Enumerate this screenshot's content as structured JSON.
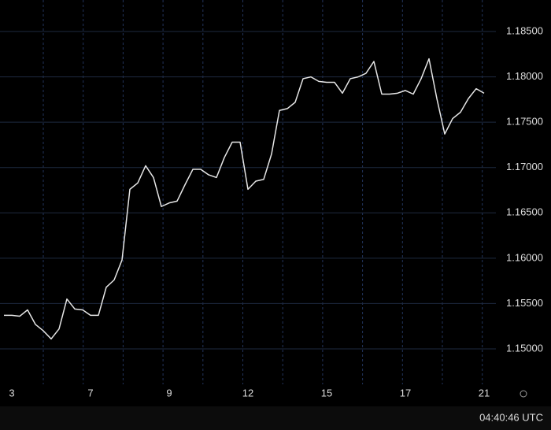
{
  "chart_data": {
    "type": "line",
    "categories": [
      null,
      "3",
      null,
      null,
      null,
      null,
      null,
      null,
      null,
      null,
      null,
      "7",
      null,
      null,
      null,
      null,
      null,
      null,
      null,
      null,
      null,
      "9",
      null,
      null,
      null,
      null,
      null,
      null,
      null,
      null,
      null,
      "12",
      null,
      null,
      null,
      null,
      null,
      null,
      null,
      null,
      null,
      "15",
      null,
      null,
      null,
      null,
      null,
      null,
      null,
      null,
      null,
      "17",
      null,
      null,
      null,
      null,
      null,
      null,
      null,
      null,
      null,
      "21"
    ],
    "series": [
      {
        "color": "#e6e6e6",
        "values": [
          1.1537,
          1.1537,
          1.1536,
          1.1543,
          1.1527,
          1.152,
          1.1511,
          1.1522,
          1.1555,
          1.1544,
          1.1543,
          1.1537,
          1.1537,
          1.1568,
          1.1576,
          1.1598,
          1.1676,
          1.1683,
          1.1702,
          1.1689,
          1.1657,
          1.1661,
          1.1663,
          1.1681,
          1.1698,
          1.1698,
          1.1692,
          1.1689,
          1.1711,
          1.1728,
          1.1728,
          1.1676,
          1.1685,
          1.1687,
          1.1715,
          1.1763,
          1.1765,
          1.1772,
          1.1798,
          1.18,
          1.1795,
          1.1794,
          1.1794,
          1.1782,
          1.1798,
          1.18,
          1.1804,
          1.1817,
          1.1781,
          1.1781,
          1.1782,
          1.1785,
          1.1781,
          1.1798,
          1.182,
          1.1776,
          1.1737,
          1.1754,
          1.1761,
          1.1776,
          1.1787,
          1.1782
        ]
      }
    ],
    "ylim": [
      1.14609,
      1.18848
    ],
    "yticks": [
      {
        "value": 1.15,
        "label": "1.15000"
      },
      {
        "value": 1.155,
        "label": "1.15500"
      },
      {
        "value": 1.16,
        "label": "1.16000"
      },
      {
        "value": 1.165,
        "label": "1.16500"
      },
      {
        "value": 1.17,
        "label": "1.17000"
      },
      {
        "value": 1.175,
        "label": "1.17500"
      },
      {
        "value": 1.18,
        "label": "1.18000"
      },
      {
        "value": 1.185,
        "label": "1.18500"
      }
    ],
    "grid": true
  },
  "clock": "04:40:46 UTC"
}
